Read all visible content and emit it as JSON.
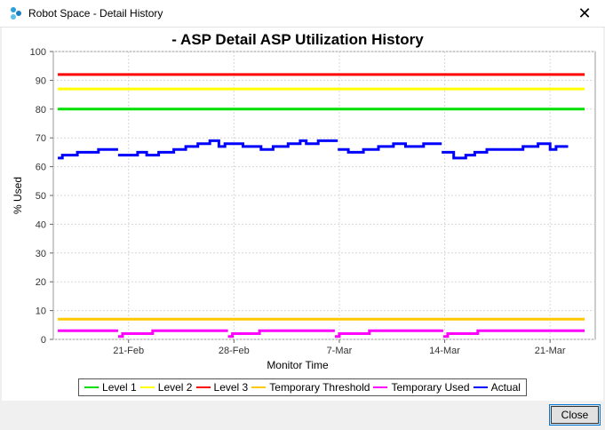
{
  "window": {
    "title": "Robot Space - Detail History",
    "close_glyph": "✕",
    "app_icon": "robot-space-icon"
  },
  "buttons": {
    "close_label": "Close"
  },
  "colors": {
    "level1": "#00e000",
    "level2": "#ffff00",
    "level3": "#ff0000",
    "temp_threshold": "#ffc800",
    "temp_used": "#ff00ff",
    "actual": "#0000ff"
  },
  "chart_data": {
    "type": "line",
    "title": "- ASP Detail ASP Utilization History",
    "xlabel": "Monitor Time",
    "ylabel": "% Used",
    "ylim": [
      0,
      100
    ],
    "yticks": [
      0,
      10,
      20,
      30,
      40,
      50,
      60,
      70,
      80,
      90,
      100
    ],
    "xlim": [
      0,
      36
    ],
    "xticks": [
      {
        "label": "21-Feb",
        "day": 5
      },
      {
        "label": "28-Feb",
        "day": 12
      },
      {
        "label": "7-Mar",
        "day": 19
      },
      {
        "label": "14-Mar",
        "day": 26
      },
      {
        "label": "21-Mar",
        "day": 33
      }
    ],
    "grid": true,
    "legend_position": "bottom",
    "series": [
      {
        "name": "Level 1",
        "color": "#00e000",
        "x": [
          0.3,
          35.3
        ],
        "y": [
          80,
          80
        ]
      },
      {
        "name": "Level 2",
        "color": "#ffff00",
        "x": [
          0.3,
          35.3
        ],
        "y": [
          87,
          87
        ]
      },
      {
        "name": "Level 3",
        "color": "#ff0000",
        "x": [
          0.3,
          35.3
        ],
        "y": [
          92,
          92
        ]
      },
      {
        "name": "Temporary Threshold",
        "color": "#ffc800",
        "x": [
          0.3,
          35.3
        ],
        "y": [
          7,
          7
        ]
      },
      {
        "name": "Temporary Used",
        "color": "#ff00ff",
        "segments": [
          {
            "x": [
              0.3,
              4.3
            ],
            "y": [
              3,
              3
            ]
          },
          {
            "x": [
              4.3,
              4.6,
              4.6,
              6.6,
              6.6,
              11.6
            ],
            "y": [
              1,
              1,
              2,
              2,
              3,
              3
            ]
          },
          {
            "x": [
              11.6,
              11.9,
              11.9,
              13.7,
              13.7,
              18.7
            ],
            "y": [
              1,
              1,
              2,
              2,
              3,
              3
            ]
          },
          {
            "x": [
              18.7,
              19.0,
              19.0,
              21.0,
              21.0,
              25.9
            ],
            "y": [
              1,
              1,
              2,
              2,
              3,
              3
            ]
          },
          {
            "x": [
              25.9,
              26.2,
              26.2,
              28.2,
              28.2,
              33.2
            ],
            "y": [
              1,
              1,
              2,
              2,
              3,
              3
            ]
          },
          {
            "x": [
              33.2,
              35.3
            ],
            "y": [
              3,
              3
            ]
          }
        ]
      },
      {
        "name": "Actual",
        "color": "#0000ff",
        "segments": [
          {
            "x": [
              0.3,
              0.6,
              0.6,
              1.2,
              1.2,
              1.6,
              1.6,
              2.4,
              2.4,
              3.0,
              3.0,
              3.6,
              3.6,
              4.3
            ],
            "y": [
              63,
              63,
              64,
              64,
              64,
              64,
              65,
              65,
              65,
              65,
              66,
              66,
              66,
              66
            ]
          },
          {
            "x": [
              4.3,
              5.6,
              5.6,
              6.2,
              6.2,
              7.0,
              7.0,
              8.0,
              8.0,
              8.8,
              8.8,
              9.6,
              9.6,
              10.4,
              10.4,
              11.0,
              11.0,
              11.4,
              11.4,
              11.8,
              11.8,
              12.6,
              12.6,
              13.8,
              13.8,
              14.6,
              14.6,
              15.6,
              15.6,
              16.4,
              16.4,
              16.8,
              16.8,
              17.6,
              17.6,
              18.3,
              18.3,
              18.9
            ],
            "y": [
              64,
              64,
              65,
              65,
              64,
              64,
              65,
              65,
              66,
              66,
              67,
              67,
              68,
              68,
              69,
              69,
              67,
              67,
              68,
              68,
              68,
              68,
              67,
              67,
              66,
              66,
              67,
              67,
              68,
              68,
              69,
              69,
              68,
              68,
              69,
              69,
              69,
              69
            ]
          },
          {
            "x": [
              18.9,
              19.6,
              19.6,
              20.6,
              20.6,
              21.6,
              21.6,
              22.6,
              22.6,
              23.4,
              23.4,
              24.6,
              24.6,
              25.8
            ],
            "y": [
              66,
              66,
              65,
              65,
              66,
              66,
              67,
              67,
              68,
              68,
              67,
              67,
              68,
              68
            ]
          },
          {
            "x": [
              25.8,
              26.6,
              26.6,
              27.4,
              27.4,
              28.0,
              28.0,
              28.8,
              28.8,
              29.4,
              29.4,
              31.2,
              31.2,
              32.2,
              32.2,
              33.0,
              33.0,
              33.4,
              33.4,
              33.8,
              33.8,
              34.2
            ],
            "y": [
              65,
              65,
              63,
              63,
              64,
              64,
              65,
              65,
              66,
              66,
              66,
              66,
              67,
              67,
              68,
              68,
              66,
              66,
              67,
              67,
              67,
              67
            ]
          }
        ]
      }
    ]
  }
}
